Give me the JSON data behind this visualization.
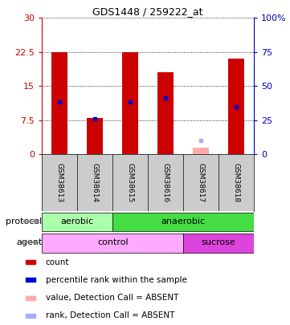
{
  "title": "GDS1448 / 259222_at",
  "samples": [
    "GSM38613",
    "GSM38614",
    "GSM38615",
    "GSM38616",
    "GSM38617",
    "GSM38618"
  ],
  "bar_values": [
    22.5,
    8.0,
    22.5,
    18.0,
    0.0,
    21.0
  ],
  "bar_colors": [
    "#cc0000",
    "#cc0000",
    "#cc0000",
    "#cc0000",
    null,
    "#cc0000"
  ],
  "absent_bar_values": [
    0,
    0,
    0,
    0,
    1.5,
    0
  ],
  "absent_bar_color": "#ffaaaa",
  "rank_markers": [
    11.5,
    7.8,
    11.5,
    12.5,
    0,
    10.5
  ],
  "rank_marker_color": "#0000cc",
  "absent_rank_markers": [
    0,
    0,
    0,
    0,
    3.0,
    0
  ],
  "absent_rank_marker_color": "#aaaaff",
  "ylim": [
    0,
    30
  ],
  "yticks": [
    0,
    7.5,
    15,
    22.5,
    30
  ],
  "ytick_labels": [
    "0",
    "7.5",
    "15",
    "22.5",
    "30"
  ],
  "right_ytick_labels": [
    "0",
    "25",
    "50",
    "75",
    "100%"
  ],
  "left_axis_color": "#cc0000",
  "right_axis_color": "#0000bb",
  "protocol_labels": [
    [
      "aerobic",
      0,
      2
    ],
    [
      "anaerobic",
      2,
      6
    ]
  ],
  "protocol_colors": [
    "#aaffaa",
    "#44dd44"
  ],
  "agent_labels": [
    [
      "control",
      0,
      4
    ],
    [
      "sucrose",
      4,
      6
    ]
  ],
  "agent_colors": [
    "#ffaaff",
    "#dd44dd"
  ],
  "legend_items": [
    {
      "color": "#cc0000",
      "label": "count"
    },
    {
      "color": "#0000cc",
      "label": "percentile rank within the sample"
    },
    {
      "color": "#ffaaaa",
      "label": "value, Detection Call = ABSENT"
    },
    {
      "color": "#aaaaff",
      "label": "rank, Detection Call = ABSENT"
    }
  ],
  "bar_width": 0.45,
  "sample_bg": "#cccccc",
  "background_color": "#ffffff"
}
